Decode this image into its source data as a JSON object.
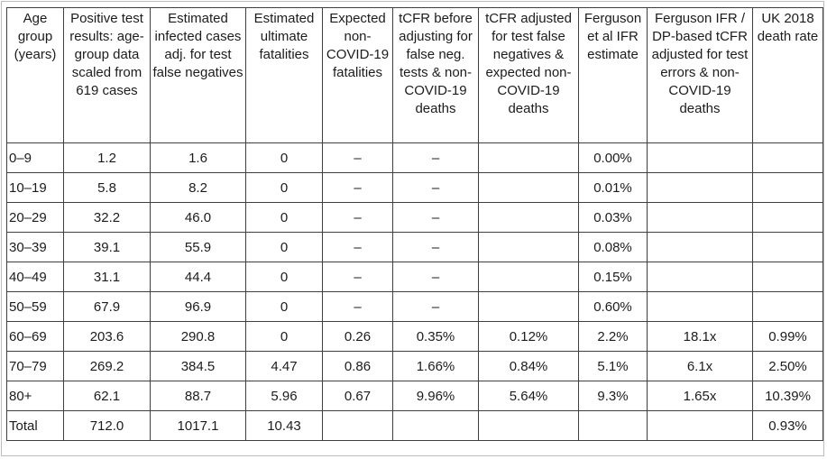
{
  "chart_data": {
    "type": "table",
    "columns": [
      "Age group (years)",
      "Positive test results: age-group data scaled from 619 cases",
      "Estimated infected cases adj. for test false negatives",
      "Estimated ultimate fatalities",
      "Expected non-COVID-19 fatalities",
      "tCFR before adjusting for false neg. tests & non-COVID-19 deaths",
      "tCFR adjusted for test false negatives & expected non-COVID-19 deaths",
      "Ferguson et al IFR estimate",
      "Ferguson IFR / DP-based tCFR adjusted for test errors & non-COVID-19 deaths",
      "UK 2018 death rate"
    ],
    "rows": [
      [
        "0–9",
        "1.2",
        "1.6",
        "0",
        "–",
        "–",
        "",
        "0.00%",
        "",
        ""
      ],
      [
        "10–19",
        "5.8",
        "8.2",
        "0",
        "–",
        "–",
        "",
        "0.01%",
        "",
        ""
      ],
      [
        "20–29",
        "32.2",
        "46.0",
        "0",
        "–",
        "–",
        "",
        "0.03%",
        "",
        ""
      ],
      [
        "30–39",
        "39.1",
        "55.9",
        "0",
        "–",
        "–",
        "",
        "0.08%",
        "",
        ""
      ],
      [
        "40–49",
        "31.1",
        "44.4",
        "0",
        "–",
        "–",
        "",
        "0.15%",
        "",
        ""
      ],
      [
        "50–59",
        "67.9",
        "96.9",
        "0",
        "–",
        "–",
        "",
        "0.60%",
        "",
        ""
      ],
      [
        "60–69",
        "203.6",
        "290.8",
        "0",
        "0.26",
        "0.35%",
        "0.12%",
        "2.2%",
        "18.1x",
        "0.99%"
      ],
      [
        "70–79",
        "269.2",
        "384.5",
        "4.47",
        "0.86",
        "1.66%",
        "0.84%",
        "5.1%",
        "6.1x",
        "2.50%"
      ],
      [
        "80+",
        "62.1",
        "88.7",
        "5.96",
        "0.67",
        "9.96%",
        "5.64%",
        "9.3%",
        "1.65x",
        "10.39%"
      ],
      [
        "Total",
        "712.0",
        "1017.1",
        "10.43",
        "",
        "",
        "",
        "",
        "",
        "0.93%"
      ]
    ]
  },
  "colors": {
    "grid_border": "#3f3f3f",
    "frame_border": "#bcbcbc",
    "text": "#1c1c1c",
    "background": "#ffffff"
  }
}
